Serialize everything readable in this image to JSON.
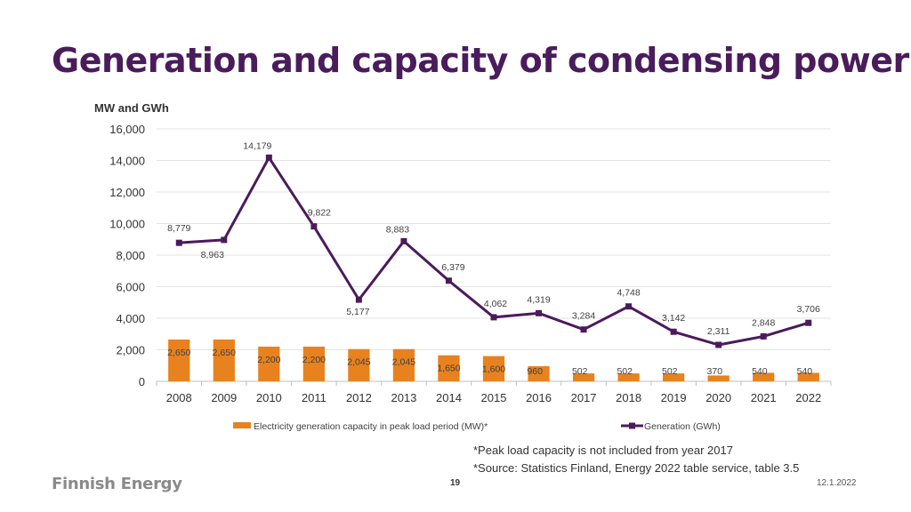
{
  "title": "Generation and capacity of condensing power",
  "notes": [
    "*Peak load capacity is not included from year 2017",
    "*Source: Statistics Finland, Energy 2022 table service, table 3.5"
  ],
  "footer": {
    "brand": "Finnish Energy",
    "page": "19",
    "date": "12.1.2022"
  },
  "colors": {
    "bar": "#E8821E",
    "line": "#4B1A5C",
    "title": "#4A1C5C",
    "grid": "#E3E3E3"
  },
  "chart_data": {
    "type": "bar+line",
    "ylabel": "MW and GWh",
    "ylim": [
      0,
      16000
    ],
    "yticks": [
      0,
      2000,
      4000,
      6000,
      8000,
      10000,
      12000,
      14000,
      16000
    ],
    "ytick_labels": [
      "0",
      "2,000",
      "4,000",
      "6,000",
      "8,000",
      "10,000",
      "12,000",
      "14,000",
      "16,000"
    ],
    "categories": [
      "2008",
      "2009",
      "2010",
      "2011",
      "2012",
      "2013",
      "2014",
      "2015",
      "2016",
      "2017",
      "2018",
      "2019",
      "2020",
      "2021",
      "2022"
    ],
    "series": [
      {
        "name": "Electricity generation capacity in peak load period (MW)*",
        "kind": "bar",
        "values": [
          2650,
          2650,
          2200,
          2200,
          2045,
          2045,
          1650,
          1600,
          960,
          502,
          502,
          502,
          370,
          540,
          540
        ],
        "labels": [
          "2,650",
          "2,650",
          "2,200",
          "2,200",
          "2,045",
          "2,045",
          "1,650",
          "1,600",
          "960",
          "502",
          "502",
          "502",
          "370",
          "540",
          "540"
        ]
      },
      {
        "name": "Generation (GWh)",
        "kind": "line",
        "values": [
          8779,
          8963,
          14179,
          9822,
          5177,
          8883,
          6379,
          4062,
          4319,
          3284,
          4748,
          3142,
          2311,
          2848,
          3706
        ],
        "labels": [
          "8,779",
          "8,963",
          "14,179",
          "9,822",
          "5,177",
          "8,883",
          "6,379",
          "4,062",
          "4,319",
          "3,284",
          "4,748",
          "3,142",
          "2,311",
          "2,848",
          "3,706"
        ]
      }
    ]
  }
}
